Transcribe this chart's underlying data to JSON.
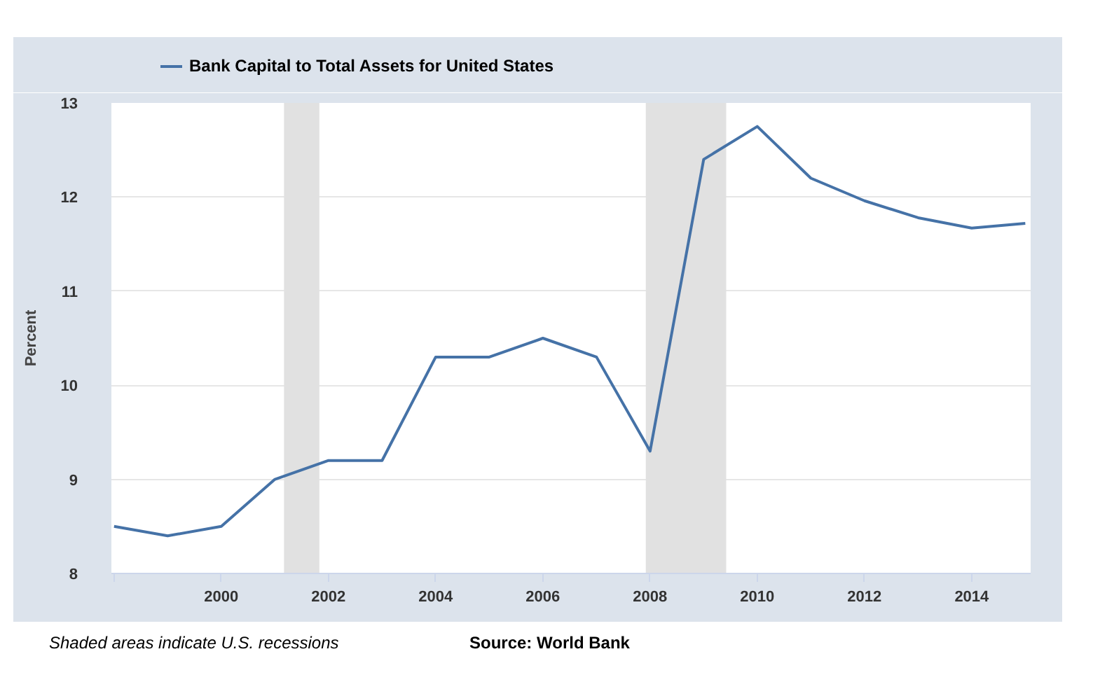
{
  "chart_data": {
    "type": "line",
    "ylabel": "Percent",
    "x": [
      1998,
      1999,
      2000,
      2001,
      2002,
      2003,
      2004,
      2005,
      2006,
      2007,
      2008,
      2009,
      2010,
      2011,
      2012,
      2013,
      2014,
      2015
    ],
    "series": [
      {
        "name": "Bank Capital to Total Assets for United States",
        "color": "#4572a7",
        "values": [
          8.5,
          8.4,
          8.5,
          9.0,
          9.2,
          9.2,
          10.3,
          10.3,
          10.5,
          10.3,
          9.3,
          12.4,
          12.75,
          12.2,
          11.96,
          11.78,
          11.67,
          11.72
        ]
      }
    ],
    "xlim": [
      1997.95,
      2015.1
    ],
    "xticks": [
      {
        "value": 1998,
        "label": null
      },
      2000,
      2002,
      2004,
      2006,
      2008,
      2010,
      2012,
      2014
    ],
    "ylim": [
      8,
      13
    ],
    "yticks": [
      8,
      9,
      10,
      11,
      12,
      13
    ],
    "bands": [
      {
        "axis": "x",
        "from": 2001.17,
        "to": 2001.83,
        "color": "#e1e1e1"
      },
      {
        "axis": "x",
        "from": 2007.92,
        "to": 2009.42,
        "color": "#e1e1e1"
      }
    ],
    "grid": "y",
    "legend": "top left",
    "annotations": [
      "Shaded areas indicate U.S. recessions",
      "Source: World Bank"
    ]
  }
}
